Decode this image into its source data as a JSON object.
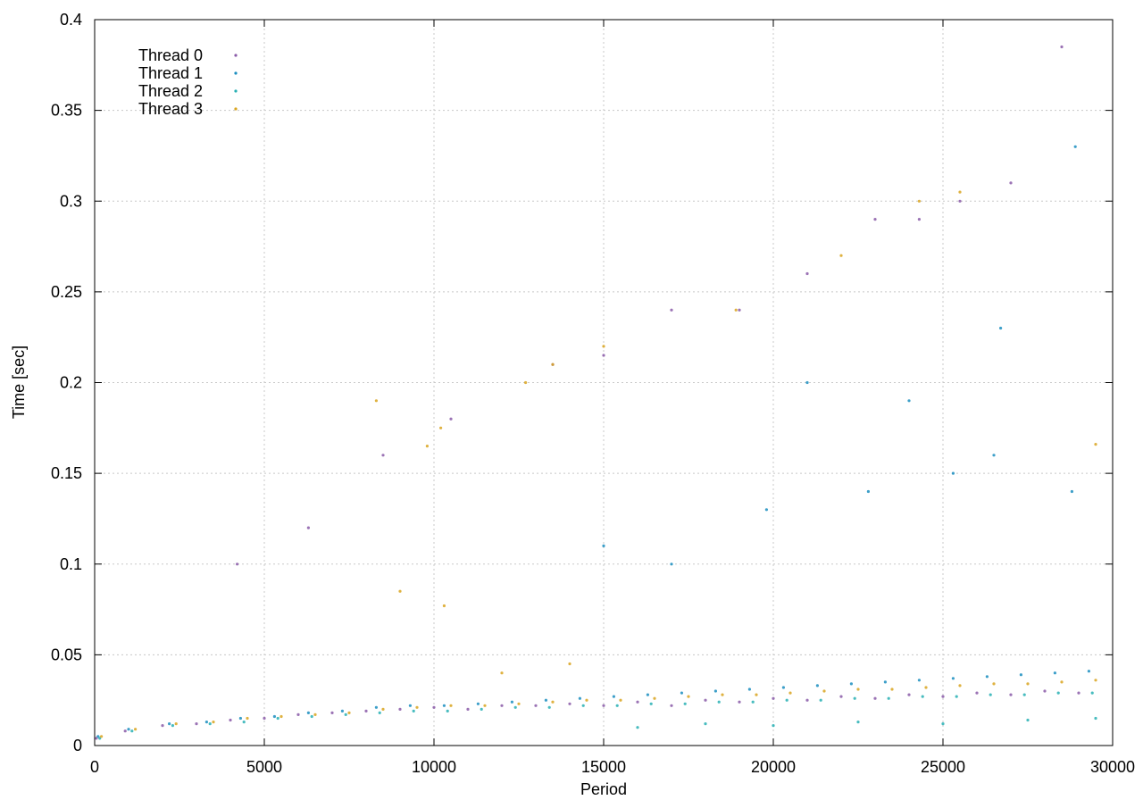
{
  "chart_data": {
    "type": "scatter",
    "xlabel": "Period",
    "ylabel": "Time [sec]",
    "xlim": [
      0,
      30000
    ],
    "ylim": [
      0,
      0.4
    ],
    "grid": true,
    "legend_position": "top-left",
    "x_ticks": [
      {
        "value": 0,
        "label": "0"
      },
      {
        "value": 5000,
        "label": "5000"
      },
      {
        "value": 10000,
        "label": "10000"
      },
      {
        "value": 15000,
        "label": "15000"
      },
      {
        "value": 20000,
        "label": "20000"
      },
      {
        "value": 25000,
        "label": "25000"
      },
      {
        "value": 30000,
        "label": "30000"
      }
    ],
    "y_ticks": [
      {
        "value": 0,
        "label": "0"
      },
      {
        "value": 0.05,
        "label": "0.05"
      },
      {
        "value": 0.1,
        "label": "0.1"
      },
      {
        "value": 0.15,
        "label": "0.15"
      },
      {
        "value": 0.2,
        "label": "0.2"
      },
      {
        "value": 0.25,
        "label": "0.25"
      },
      {
        "value": 0.3,
        "label": "0.3"
      },
      {
        "value": 0.35,
        "label": "0.35"
      },
      {
        "value": 0.4,
        "label": "0.4"
      }
    ],
    "series": [
      {
        "name": "Thread 0",
        "color": "#8a5aa8",
        "points": [
          [
            50,
            0.004
          ],
          [
            900,
            0.008
          ],
          [
            2000,
            0.011
          ],
          [
            3000,
            0.012
          ],
          [
            4000,
            0.014
          ],
          [
            5000,
            0.015
          ],
          [
            6000,
            0.017
          ],
          [
            7000,
            0.018
          ],
          [
            8000,
            0.019
          ],
          [
            9000,
            0.02
          ],
          [
            10000,
            0.021
          ],
          [
            11000,
            0.02
          ],
          [
            12000,
            0.022
          ],
          [
            13000,
            0.022
          ],
          [
            14000,
            0.023
          ],
          [
            15000,
            0.022
          ],
          [
            16000,
            0.024
          ],
          [
            17000,
            0.022
          ],
          [
            18000,
            0.025
          ],
          [
            19000,
            0.024
          ],
          [
            20000,
            0.026
          ],
          [
            21000,
            0.025
          ],
          [
            22000,
            0.027
          ],
          [
            23000,
            0.026
          ],
          [
            24000,
            0.028
          ],
          [
            25000,
            0.027
          ],
          [
            26000,
            0.029
          ],
          [
            27000,
            0.028
          ],
          [
            28000,
            0.03
          ],
          [
            29000,
            0.029
          ],
          [
            4200,
            0.1
          ],
          [
            6300,
            0.12
          ],
          [
            8500,
            0.16
          ],
          [
            10500,
            0.18
          ],
          [
            13500,
            0.21
          ],
          [
            15000,
            0.215
          ],
          [
            17000,
            0.24
          ],
          [
            19000,
            0.24
          ],
          [
            21000,
            0.26
          ],
          [
            23000,
            0.29
          ],
          [
            24300,
            0.29
          ],
          [
            25500,
            0.3
          ],
          [
            27000,
            0.31
          ],
          [
            28500,
            0.385
          ]
        ]
      },
      {
        "name": "Thread 1",
        "color": "#1b8ec0",
        "points": [
          [
            100,
            0.005
          ],
          [
            1000,
            0.009
          ],
          [
            2200,
            0.012
          ],
          [
            3300,
            0.013
          ],
          [
            4300,
            0.015
          ],
          [
            5300,
            0.016
          ],
          [
            6300,
            0.018
          ],
          [
            7300,
            0.019
          ],
          [
            8300,
            0.021
          ],
          [
            9300,
            0.022
          ],
          [
            10300,
            0.022
          ],
          [
            11300,
            0.023
          ],
          [
            12300,
            0.024
          ],
          [
            13300,
            0.025
          ],
          [
            14300,
            0.026
          ],
          [
            15300,
            0.027
          ],
          [
            16300,
            0.028
          ],
          [
            17300,
            0.029
          ],
          [
            18300,
            0.03
          ],
          [
            19300,
            0.031
          ],
          [
            20300,
            0.032
          ],
          [
            21300,
            0.033
          ],
          [
            22300,
            0.034
          ],
          [
            23300,
            0.035
          ],
          [
            24300,
            0.036
          ],
          [
            25300,
            0.037
          ],
          [
            26300,
            0.038
          ],
          [
            27300,
            0.039
          ],
          [
            28300,
            0.04
          ],
          [
            29300,
            0.041
          ],
          [
            15000,
            0.11
          ],
          [
            17000,
            0.1
          ],
          [
            19800,
            0.13
          ],
          [
            22800,
            0.14
          ],
          [
            25300,
            0.15
          ],
          [
            26500,
            0.16
          ],
          [
            28800,
            0.14
          ],
          [
            21000,
            0.2
          ],
          [
            24000,
            0.19
          ],
          [
            26700,
            0.23
          ],
          [
            28900,
            0.33
          ]
        ]
      },
      {
        "name": "Thread 2",
        "color": "#28b0b4",
        "points": [
          [
            150,
            0.004
          ],
          [
            1100,
            0.008
          ],
          [
            2300,
            0.011
          ],
          [
            3400,
            0.012
          ],
          [
            4400,
            0.013
          ],
          [
            5400,
            0.015
          ],
          [
            6400,
            0.016
          ],
          [
            7400,
            0.017
          ],
          [
            8400,
            0.018
          ],
          [
            9400,
            0.019
          ],
          [
            10400,
            0.019
          ],
          [
            11400,
            0.02
          ],
          [
            12400,
            0.021
          ],
          [
            13400,
            0.021
          ],
          [
            14400,
            0.022
          ],
          [
            15400,
            0.022
          ],
          [
            16400,
            0.023
          ],
          [
            17400,
            0.023
          ],
          [
            18400,
            0.024
          ],
          [
            19400,
            0.024
          ],
          [
            20400,
            0.025
          ],
          [
            21400,
            0.025
          ],
          [
            22400,
            0.026
          ],
          [
            23400,
            0.026
          ],
          [
            24400,
            0.027
          ],
          [
            25400,
            0.027
          ],
          [
            26400,
            0.028
          ],
          [
            27400,
            0.028
          ],
          [
            28400,
            0.029
          ],
          [
            29400,
            0.029
          ],
          [
            16000,
            0.01
          ],
          [
            18000,
            0.012
          ],
          [
            20000,
            0.011
          ],
          [
            22500,
            0.013
          ],
          [
            25000,
            0.012
          ],
          [
            27500,
            0.014
          ],
          [
            29500,
            0.015
          ]
        ]
      },
      {
        "name": "Thread 3",
        "color": "#d9a520",
        "points": [
          [
            200,
            0.005
          ],
          [
            1200,
            0.009
          ],
          [
            2400,
            0.012
          ],
          [
            3500,
            0.013
          ],
          [
            4500,
            0.015
          ],
          [
            5500,
            0.016
          ],
          [
            6500,
            0.017
          ],
          [
            7500,
            0.018
          ],
          [
            8500,
            0.02
          ],
          [
            9500,
            0.021
          ],
          [
            10500,
            0.022
          ],
          [
            11500,
            0.022
          ],
          [
            12500,
            0.023
          ],
          [
            13500,
            0.024
          ],
          [
            14500,
            0.025
          ],
          [
            15500,
            0.025
          ],
          [
            16500,
            0.026
          ],
          [
            17500,
            0.027
          ],
          [
            18500,
            0.028
          ],
          [
            19500,
            0.028
          ],
          [
            20500,
            0.029
          ],
          [
            21500,
            0.03
          ],
          [
            22500,
            0.031
          ],
          [
            23500,
            0.031
          ],
          [
            24500,
            0.032
          ],
          [
            25500,
            0.033
          ],
          [
            26500,
            0.034
          ],
          [
            27500,
            0.034
          ],
          [
            28500,
            0.035
          ],
          [
            29500,
            0.036
          ],
          [
            8300,
            0.19
          ],
          [
            9800,
            0.165
          ],
          [
            10200,
            0.175
          ],
          [
            12700,
            0.2
          ],
          [
            13500,
            0.21
          ],
          [
            15000,
            0.22
          ],
          [
            18900,
            0.24
          ],
          [
            22000,
            0.27
          ],
          [
            24300,
            0.3
          ],
          [
            25500,
            0.305
          ],
          [
            9000,
            0.085
          ],
          [
            10300,
            0.077
          ],
          [
            29500,
            0.166
          ],
          [
            12000,
            0.04
          ],
          [
            14000,
            0.045
          ]
        ]
      }
    ]
  }
}
